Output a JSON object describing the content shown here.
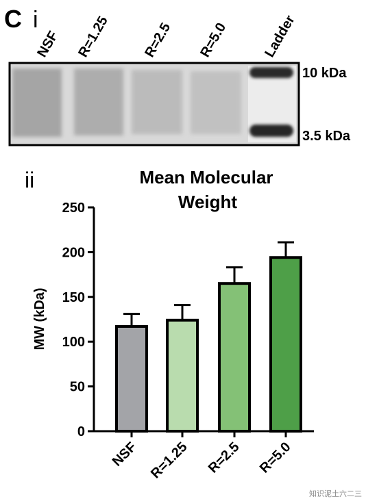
{
  "panel": {
    "letter": "C",
    "gel_sublabel": "i",
    "chart_sublabel": "ii",
    "watermark": "知识泥土六二三"
  },
  "gel": {
    "lanes": [
      "NSF",
      "R=1.25",
      "R=2.5",
      "R=5.0",
      "Ladder"
    ],
    "markers": [
      "10 kDa",
      "3.5 kDa"
    ]
  },
  "colors": {
    "bar_nsf": "#a3a4a8",
    "bar_r125": "#b9dcae",
    "bar_r25": "#84c176",
    "bar_r50": "#4e9f48",
    "axis": "#000000"
  },
  "chart_data": {
    "type": "bar",
    "title": [
      "Mean Molecular",
      "Weight"
    ],
    "ylabel": "MW (kDa)",
    "xlabel": "",
    "categories": [
      "NSF",
      "R=1.25",
      "R=2.5",
      "R=5.0"
    ],
    "values": [
      117,
      124,
      165,
      194
    ],
    "errors": [
      14,
      17,
      18,
      17
    ],
    "ylim": [
      0,
      250
    ],
    "yticks": [
      "0",
      "50",
      "100",
      "150",
      "200",
      "250"
    ],
    "grid": false,
    "legend": "none"
  }
}
